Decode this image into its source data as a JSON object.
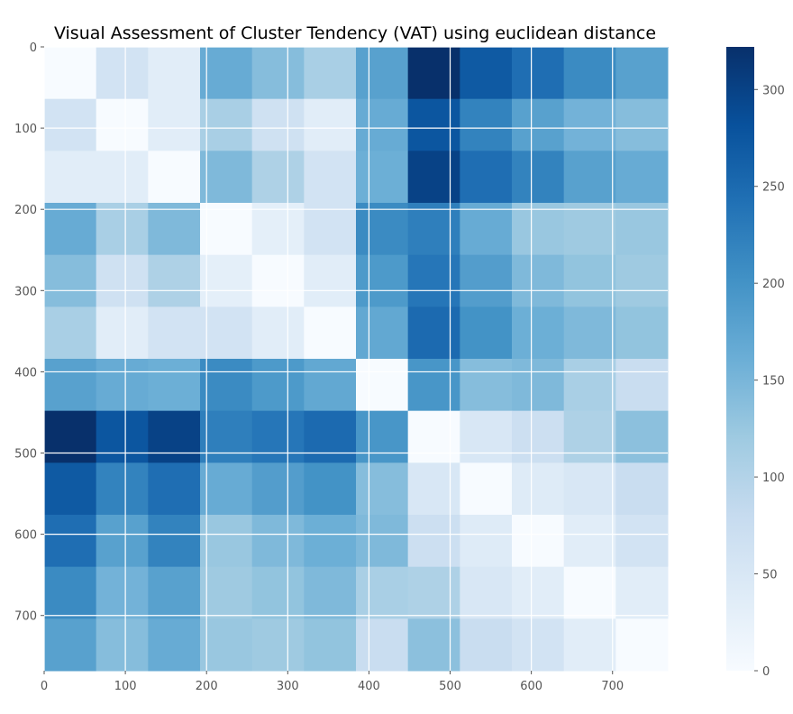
{
  "chart_data": {
    "type": "heatmap",
    "title": "Visual Assessment of Cluster Tendency (VAT) using euclidean distance",
    "xlabel": "",
    "ylabel": "",
    "n_blocks": 12,
    "block_size": 64,
    "xlim": [
      0,
      768
    ],
    "ylim": [
      768,
      0
    ],
    "x_ticks": [
      0,
      100,
      200,
      300,
      400,
      500,
      600,
      700
    ],
    "y_ticks": [
      0,
      100,
      200,
      300,
      400,
      500,
      600,
      700
    ],
    "grid": true,
    "colormap": "Blues",
    "colorbar": {
      "min": 0,
      "max": 322,
      "ticks": [
        0,
        50,
        100,
        150,
        200,
        250,
        300
      ]
    },
    "matrix": [
      [
        0,
        60,
        35,
        165,
        140,
        110,
        180,
        322,
        270,
        245,
        210,
        180
      ],
      [
        60,
        0,
        35,
        110,
        65,
        35,
        165,
        275,
        220,
        180,
        155,
        140
      ],
      [
        35,
        35,
        0,
        145,
        105,
        60,
        160,
        300,
        245,
        220,
        180,
        165
      ],
      [
        165,
        110,
        145,
        0,
        30,
        60,
        210,
        225,
        165,
        125,
        120,
        125
      ],
      [
        140,
        65,
        105,
        30,
        0,
        35,
        190,
        235,
        185,
        145,
        130,
        120
      ],
      [
        110,
        35,
        60,
        60,
        35,
        0,
        170,
        250,
        200,
        160,
        145,
        130
      ],
      [
        180,
        165,
        160,
        210,
        190,
        170,
        0,
        195,
        140,
        145,
        110,
        75
      ],
      [
        322,
        275,
        300,
        225,
        235,
        250,
        195,
        0,
        50,
        70,
        105,
        135
      ],
      [
        270,
        220,
        245,
        165,
        185,
        200,
        140,
        50,
        0,
        40,
        50,
        75
      ],
      [
        245,
        180,
        220,
        125,
        145,
        160,
        145,
        70,
        40,
        0,
        35,
        60
      ],
      [
        210,
        155,
        180,
        120,
        130,
        145,
        110,
        105,
        50,
        35,
        0,
        35
      ],
      [
        180,
        140,
        165,
        125,
        120,
        130,
        75,
        135,
        75,
        60,
        35,
        0
      ]
    ]
  }
}
